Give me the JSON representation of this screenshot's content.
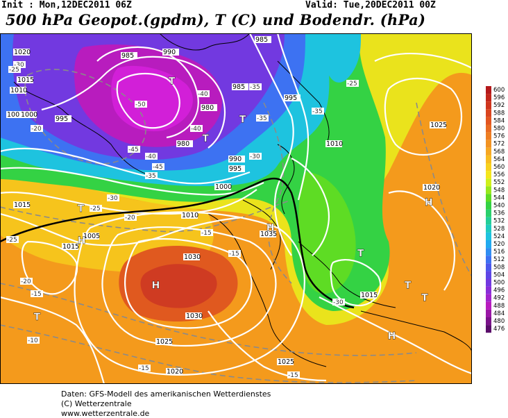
{
  "header": {
    "init": "Init : Mon,12DEC2011 06Z",
    "valid": "Valid: Tue,20DEC2011 00Z",
    "title": "500 hPa Geopot.(gpdm), T (C) und Bodendr. (hPa)"
  },
  "footer": {
    "line1": "Daten: GFS-Modell des amerikanischen Wetterdienstes",
    "line2": "(C) Wetterzentrale",
    "line3": "www.wetterzentrale.de"
  },
  "colors": {
    "deep_low": "#6a0f8a",
    "purple": "#9b2bd6",
    "violet": "#6a4be0",
    "blue": "#3a6ff0",
    "cyan": "#19c4e6",
    "green": "#33d24a",
    "yellow": "#f2d200",
    "orange": "#f49a1c",
    "deep_orange": "#e86d1f",
    "red": "#cf3b22"
  },
  "legend": {
    "values": [
      "600",
      "596",
      "592",
      "588",
      "584",
      "580",
      "576",
      "572",
      "568",
      "564",
      "560",
      "556",
      "552",
      "548",
      "544",
      "540",
      "536",
      "532",
      "528",
      "524",
      "520",
      "516",
      "512",
      "508",
      "504",
      "500",
      "496",
      "492",
      "488",
      "484",
      "480",
      "476"
    ],
    "colors": [
      "#b4181b",
      "#c2261b",
      "#cf351d",
      "#d9441f",
      "#e25520",
      "#e86a22",
      "#ee7e22",
      "#f29322",
      "#f6a722",
      "#f8bc20",
      "#f8d11e",
      "#f4e61c",
      "#cff01a",
      "#98e81c",
      "#5edc24",
      "#34d244",
      "#2ad06c",
      "#23ce98",
      "#1fcbbf",
      "#1ec3df",
      "#21aaf0",
      "#2f8ef2",
      "#3d72f2",
      "#4b58ec",
      "#5e46e6",
      "#7239e0",
      "#8a2ed8",
      "#a224cc",
      "#b81cbe",
      "#9a17a6",
      "#7a128a",
      "#5a0d6a"
    ]
  },
  "pressure_centers": [
    {
      "label": "H",
      "lat": 40,
      "lon": -25
    },
    {
      "label": "H",
      "lat": 53,
      "lon": 56
    },
    {
      "label": "H",
      "lat": 49,
      "lon": 9
    },
    {
      "label": "H",
      "lat": 47,
      "lon": -47
    },
    {
      "label": "T",
      "lat": 72,
      "lon": -20
    },
    {
      "label": "T",
      "lat": 63,
      "lon": -10
    },
    {
      "label": "T",
      "lat": 66,
      "lon": 1
    },
    {
      "label": "T",
      "lat": 52,
      "lon": -47
    },
    {
      "label": "T",
      "lat": 45,
      "lon": 36
    },
    {
      "label": "T",
      "lat": 40,
      "lon": 50
    },
    {
      "label": "T",
      "lat": 38,
      "lon": 55
    },
    {
      "label": "T",
      "lat": 35,
      "lon": -60
    },
    {
      "label": "H",
      "lat": 32,
      "lon": 45
    }
  ],
  "isobar_labels": [
    "1035",
    "1030",
    "1025",
    "1020",
    "1015",
    "1010",
    "1005",
    "1000",
    "995",
    "990",
    "985",
    "980"
  ],
  "temperature_labels": [
    "-50",
    "-45",
    "-40",
    "-35",
    "-30",
    "-25",
    "-20",
    "-15",
    "-10"
  ]
}
